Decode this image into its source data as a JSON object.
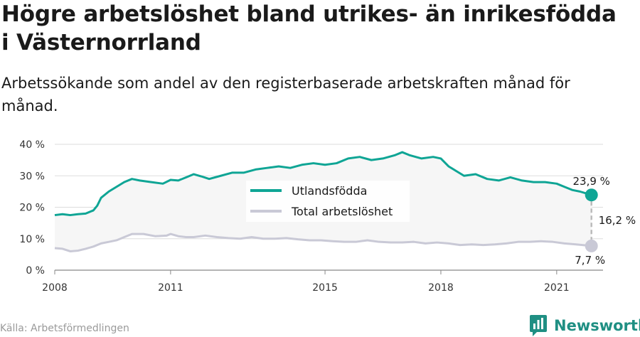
{
  "title": "Högre arbetslöshet bland utrikes- än inrikesfödda i Västernorrland",
  "subtitle": "Arbetssökande som andel av den registerbaserade arbetskraften månad för månad.",
  "source": "Källa: Arbetsförmedlingen",
  "brand": "Newsworthy",
  "colors": {
    "accent": "#0fa595",
    "total": "#c9c9d6",
    "fill": "#f6f6f6",
    "grid": "#dddddd",
    "brand": "#1f8f83"
  },
  "chart_data": {
    "type": "line",
    "ylim": [
      0,
      40
    ],
    "xlim": [
      2008,
      2022.2
    ],
    "yticks": [
      "0 %",
      "10 %",
      "20 %",
      "30 %",
      "40 %"
    ],
    "xticks": [
      "2008",
      "2011",
      "2015",
      "2018",
      "2021"
    ],
    "legend_position": "center",
    "annotations": {
      "last_utl": "23,9 %",
      "last_total": "7,7 %",
      "gap": "16,2 %"
    },
    "series": [
      {
        "name": "Utlandsfödda",
        "x": [
          2008.0,
          2008.2,
          2008.4,
          2008.6,
          2008.8,
          2009.0,
          2009.1,
          2009.2,
          2009.4,
          2009.6,
          2009.8,
          2010.0,
          2010.2,
          2010.5,
          2010.8,
          2011.0,
          2011.2,
          2011.4,
          2011.6,
          2011.8,
          2012.0,
          2012.3,
          2012.6,
          2012.9,
          2013.2,
          2013.5,
          2013.8,
          2014.1,
          2014.4,
          2014.7,
          2015.0,
          2015.3,
          2015.6,
          2015.9,
          2016.2,
          2016.5,
          2016.8,
          2017.0,
          2017.2,
          2017.5,
          2017.8,
          2018.0,
          2018.2,
          2018.4,
          2018.6,
          2018.9,
          2019.2,
          2019.5,
          2019.8,
          2020.1,
          2020.4,
          2020.7,
          2021.0,
          2021.2,
          2021.4,
          2021.6,
          2021.9
        ],
        "values": [
          17.5,
          17.8,
          17.5,
          17.8,
          18.0,
          19.0,
          20.5,
          23.0,
          25.0,
          26.5,
          28.0,
          29.0,
          28.5,
          28.0,
          27.5,
          28.7,
          28.5,
          29.5,
          30.5,
          29.8,
          29.0,
          30.0,
          31.0,
          31.0,
          32.0,
          32.5,
          33.0,
          32.5,
          33.5,
          34.0,
          33.5,
          34.0,
          35.5,
          36.0,
          35.0,
          35.5,
          36.5,
          37.5,
          36.5,
          35.5,
          36.0,
          35.5,
          33.0,
          31.5,
          30.0,
          30.5,
          29.0,
          28.5,
          29.5,
          28.5,
          28.0,
          28.0,
          27.5,
          26.5,
          25.5,
          25.0,
          23.9
        ]
      },
      {
        "name": "Total arbetslöshet",
        "x": [
          2008.0,
          2008.2,
          2008.4,
          2008.6,
          2008.8,
          2009.0,
          2009.2,
          2009.4,
          2009.6,
          2009.8,
          2010.0,
          2010.3,
          2010.6,
          2010.9,
          2011.0,
          2011.2,
          2011.4,
          2011.6,
          2011.9,
          2012.2,
          2012.5,
          2012.8,
          2013.1,
          2013.4,
          2013.7,
          2014.0,
          2014.3,
          2014.6,
          2014.9,
          2015.2,
          2015.5,
          2015.8,
          2016.1,
          2016.4,
          2016.7,
          2017.0,
          2017.3,
          2017.6,
          2017.9,
          2018.2,
          2018.5,
          2018.8,
          2019.1,
          2019.4,
          2019.7,
          2020.0,
          2020.3,
          2020.6,
          2020.9,
          2021.2,
          2021.5,
          2021.9
        ],
        "values": [
          7.0,
          6.8,
          6.0,
          6.2,
          6.8,
          7.5,
          8.5,
          9.0,
          9.5,
          10.5,
          11.5,
          11.5,
          10.8,
          11.0,
          11.5,
          10.8,
          10.5,
          10.5,
          11.0,
          10.5,
          10.2,
          10.0,
          10.5,
          10.0,
          10.0,
          10.2,
          9.8,
          9.5,
          9.5,
          9.2,
          9.0,
          9.0,
          9.5,
          9.0,
          8.8,
          8.8,
          9.0,
          8.5,
          8.8,
          8.5,
          8.0,
          8.2,
          8.0,
          8.2,
          8.5,
          9.0,
          9.0,
          9.2,
          9.0,
          8.5,
          8.2,
          7.7
        ]
      }
    ]
  }
}
